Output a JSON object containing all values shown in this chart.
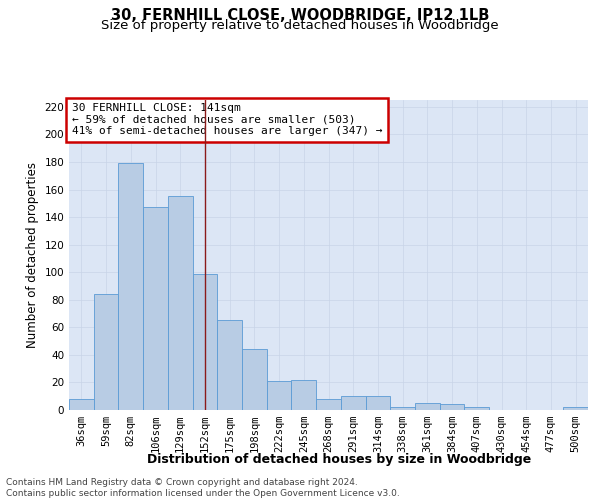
{
  "title": "30, FERNHILL CLOSE, WOODBRIDGE, IP12 1LB",
  "subtitle": "Size of property relative to detached houses in Woodbridge",
  "xlabel": "Distribution of detached houses by size in Woodbridge",
  "ylabel": "Number of detached properties",
  "categories": [
    "36sqm",
    "59sqm",
    "82sqm",
    "106sqm",
    "129sqm",
    "152sqm",
    "175sqm",
    "198sqm",
    "222sqm",
    "245sqm",
    "268sqm",
    "291sqm",
    "314sqm",
    "338sqm",
    "361sqm",
    "384sqm",
    "407sqm",
    "430sqm",
    "454sqm",
    "477sqm",
    "500sqm"
  ],
  "values": [
    8,
    84,
    179,
    147,
    155,
    99,
    65,
    44,
    21,
    22,
    8,
    10,
    10,
    2,
    5,
    4,
    2,
    0,
    0,
    0,
    2
  ],
  "bar_color": "#b8cce4",
  "bar_edge_color": "#5b9bd5",
  "vline_color": "#8b1a1a",
  "vline_pos": 5.0,
  "annotation_text": "30 FERNHILL CLOSE: 141sqm\n← 59% of detached houses are smaller (503)\n41% of semi-detached houses are larger (347) →",
  "annotation_box_facecolor": "#ffffff",
  "annotation_box_edgecolor": "#cc0000",
  "ylim": [
    0,
    225
  ],
  "yticks": [
    0,
    20,
    40,
    60,
    80,
    100,
    120,
    140,
    160,
    180,
    200,
    220
  ],
  "grid_color": "#c8d4e8",
  "background_color": "#dce6f5",
  "footer_line1": "Contains HM Land Registry data © Crown copyright and database right 2024.",
  "footer_line2": "Contains public sector information licensed under the Open Government Licence v3.0.",
  "title_fontsize": 10.5,
  "subtitle_fontsize": 9.5,
  "xlabel_fontsize": 9,
  "ylabel_fontsize": 8.5,
  "tick_fontsize": 7.5,
  "annotation_fontsize": 8,
  "footer_fontsize": 6.5
}
